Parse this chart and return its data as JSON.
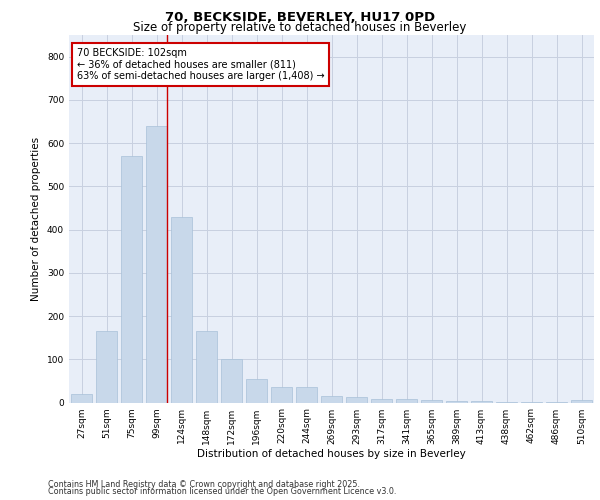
{
  "title1": "70, BECKSIDE, BEVERLEY, HU17 0PD",
  "title2": "Size of property relative to detached houses in Beverley",
  "xlabel": "Distribution of detached houses by size in Beverley",
  "ylabel": "Number of detached properties",
  "categories": [
    "27sqm",
    "51sqm",
    "75sqm",
    "99sqm",
    "124sqm",
    "148sqm",
    "172sqm",
    "196sqm",
    "220sqm",
    "244sqm",
    "269sqm",
    "293sqm",
    "317sqm",
    "341sqm",
    "365sqm",
    "389sqm",
    "413sqm",
    "438sqm",
    "462sqm",
    "486sqm",
    "510sqm"
  ],
  "values": [
    20,
    165,
    570,
    640,
    430,
    165,
    100,
    55,
    35,
    35,
    15,
    12,
    8,
    7,
    6,
    4,
    3,
    2,
    1,
    1,
    5
  ],
  "bar_color": "#c8d8ea",
  "bar_edgecolor": "#a8c0d8",
  "annotation_title": "70 BECKSIDE: 102sqm",
  "annotation_line1": "← 36% of detached houses are smaller (811)",
  "annotation_line2": "63% of semi-detached houses are larger (1,408) →",
  "annotation_box_color": "#ffffff",
  "annotation_box_edgecolor": "#cc0000",
  "vline_color": "#cc0000",
  "ylim": [
    0,
    850
  ],
  "yticks": [
    0,
    100,
    200,
    300,
    400,
    500,
    600,
    700,
    800
  ],
  "grid_color": "#c8d0e0",
  "bg_color": "#e8eef8",
  "footer1": "Contains HM Land Registry data © Crown copyright and database right 2025.",
  "footer2": "Contains public sector information licensed under the Open Government Licence v3.0.",
  "title_fontsize": 9.5,
  "subtitle_fontsize": 8.5,
  "axis_label_fontsize": 7.5,
  "tick_fontsize": 6.5,
  "annotation_fontsize": 7.0,
  "footer_fontsize": 5.8
}
